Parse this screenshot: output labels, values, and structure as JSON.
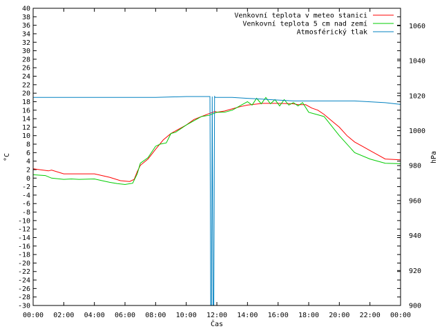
{
  "chart_data": {
    "type": "line",
    "xlabel": "Čas",
    "ylabel": "°C",
    "y2label": "hPa",
    "x_ticks": [
      "00:00",
      "02:00",
      "04:00",
      "06:00",
      "08:00",
      "10:00",
      "12:00",
      "14:00",
      "16:00",
      "18:00",
      "20:00",
      "22:00",
      "00:00"
    ],
    "ylim": [
      -30,
      40
    ],
    "y_step": 2,
    "y2lim": [
      900,
      1070
    ],
    "y2_ticks": [
      900,
      920,
      940,
      960,
      980,
      1000,
      1020,
      1040,
      1060
    ],
    "grid": false,
    "legend_position": "top-right",
    "series": [
      {
        "name": "Venkovní teplota v meteo stanici",
        "axis": "left",
        "color": "#ff0000",
        "x_hours": [
          0,
          1,
          1.2,
          2,
          3,
          4,
          4.5,
          5,
          5.7,
          6.3,
          6.6,
          6.8,
          7,
          7.5,
          8,
          8.5,
          9,
          10,
          10.5,
          11,
          11.5,
          11.9,
          12,
          12.5,
          13,
          13.5,
          14,
          15,
          16,
          17,
          17.3,
          17.8,
          18.2,
          18.6,
          19,
          19.5,
          20,
          20.5,
          21,
          21.5,
          22,
          22.5,
          23,
          24
        ],
        "values": [
          2.2,
          1.7,
          1.9,
          1.0,
          1.0,
          1.0,
          0.6,
          0.2,
          -0.6,
          -0.8,
          -0.3,
          1.5,
          3.0,
          4.5,
          6.8,
          9.0,
          10.5,
          12.5,
          13.8,
          14.5,
          15.2,
          15.7,
          15.5,
          15.8,
          16.3,
          16.8,
          17.2,
          17.6,
          17.6,
          17.5,
          17.3,
          17.3,
          16.5,
          16.0,
          15.0,
          13.5,
          12.0,
          10.0,
          8.5,
          7.5,
          6.5,
          5.5,
          4.5,
          4.3
        ]
      },
      {
        "name": "Venkovní teplota 5 cm nad zemí",
        "axis": "left",
        "color": "#00cc00",
        "x_hours": [
          0,
          0.8,
          1.2,
          2,
          2.5,
          3,
          4,
          4.5,
          5,
          5.5,
          6,
          6.5,
          6.8,
          7,
          7.5,
          8,
          8.3,
          8.7,
          9,
          9.3,
          10,
          11,
          11.5,
          12,
          12.5,
          13,
          13.5,
          14,
          14.3,
          14.6,
          14.9,
          15.2,
          15.5,
          15.8,
          16.1,
          16.4,
          16.7,
          17,
          17.3,
          17.6,
          18,
          18.5,
          19,
          20,
          21,
          22,
          23,
          24
        ],
        "values": [
          0.8,
          0.6,
          0.0,
          -0.3,
          -0.2,
          -0.3,
          -0.2,
          -0.6,
          -1.0,
          -1.3,
          -1.5,
          -1.2,
          1.0,
          3.5,
          4.8,
          7.5,
          8.0,
          8.3,
          10.5,
          10.8,
          12.5,
          14.5,
          14.8,
          15.5,
          15.5,
          16.0,
          17.0,
          18.0,
          17.2,
          18.8,
          17.5,
          19.0,
          17.5,
          18.5,
          17.0,
          18.5,
          17.2,
          17.8,
          17.0,
          17.8,
          15.5,
          15.0,
          14.5,
          10.0,
          6.0,
          4.5,
          3.5,
          3.4
        ]
      },
      {
        "name": "Atmosférický tlak",
        "axis": "right",
        "color": "#0080c0",
        "x_hours": [
          0,
          2,
          4,
          6,
          8,
          10,
          11,
          11.55,
          11.6,
          11.65,
          11.7,
          11.75,
          11.8,
          11.85,
          11.9,
          12.5,
          13,
          14,
          15,
          16,
          17,
          18,
          19,
          20,
          21,
          22,
          23,
          24
        ],
        "values": [
          1019,
          1019,
          1019,
          1019,
          1019,
          1019.5,
          1019.5,
          1019.5,
          900,
          900,
          1019.5,
          900,
          900,
          1019.5,
          1019,
          1019,
          1019,
          1018.5,
          1018,
          1017.5,
          1017,
          1017,
          1017,
          1017,
          1017,
          1016.5,
          1016,
          1015
        ]
      }
    ]
  }
}
